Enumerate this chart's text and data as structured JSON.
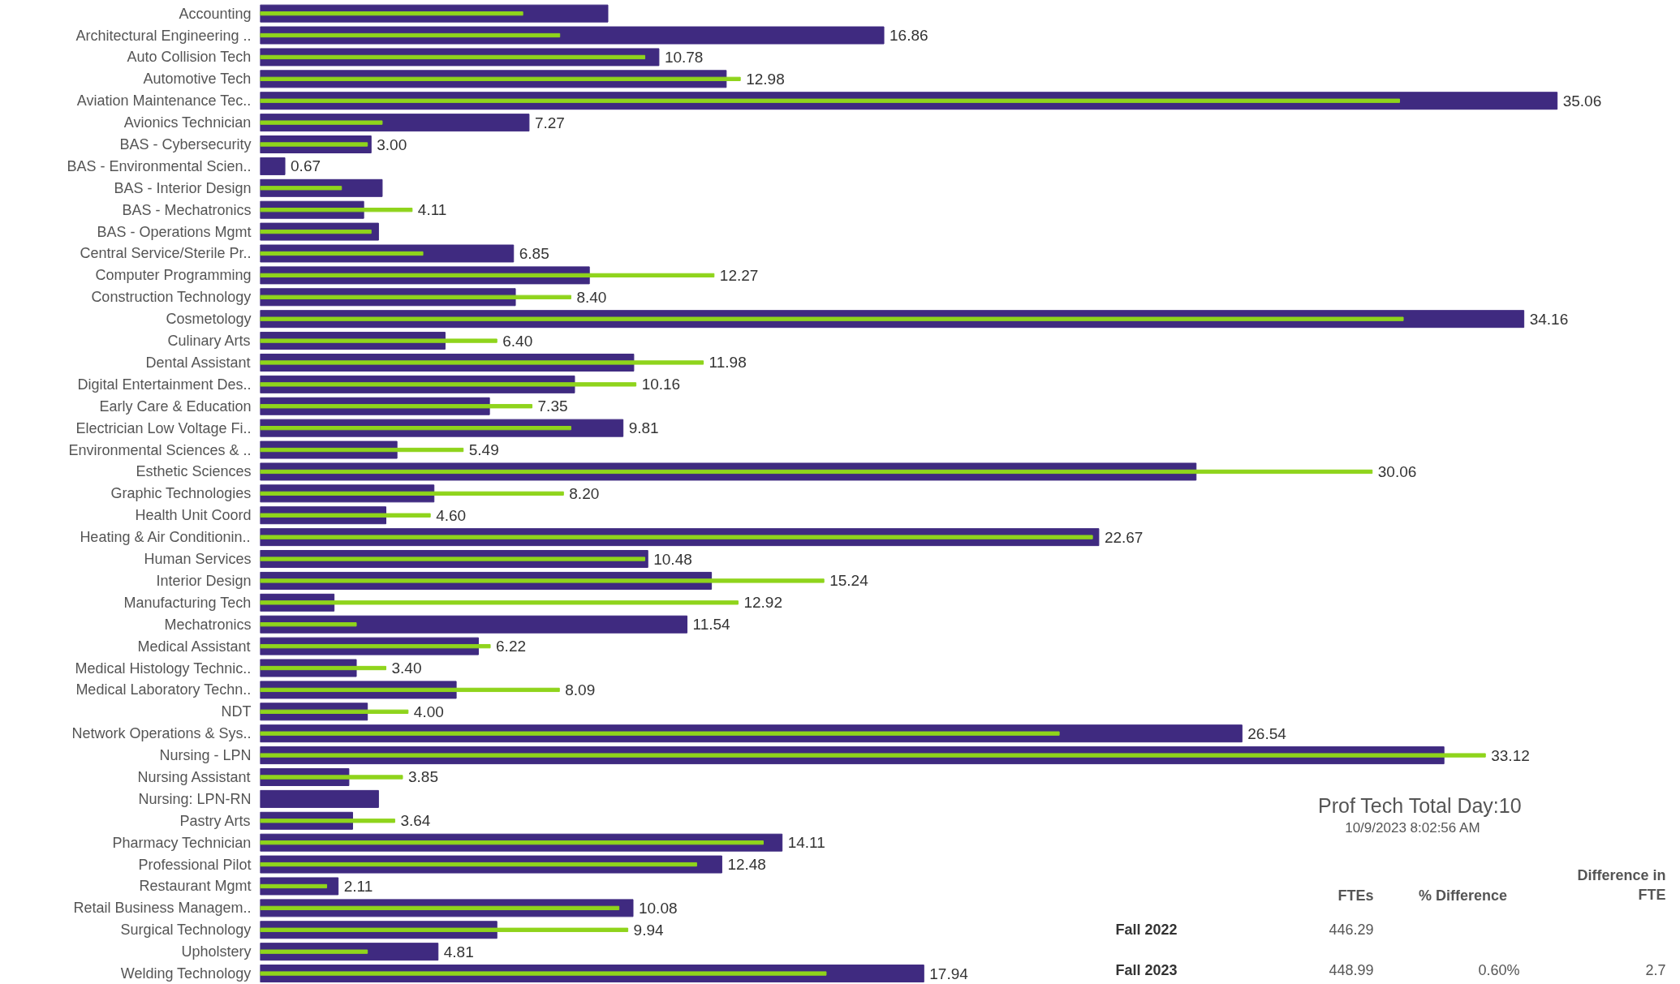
{
  "chart_data": {
    "type": "bar",
    "orientation": "horizontal",
    "categories": [
      "Accounting",
      "Architectural Engineering ..",
      "Auto Collision Tech",
      "Automotive Tech",
      "Aviation Maintenance Tec..",
      "Avionics Technician",
      "BAS - Cybersecurity",
      "BAS - Environmental Scien..",
      "BAS - Interior Design",
      "BAS - Mechatronics",
      "BAS - Operations Mgmt",
      "Central Service/Sterile Pr..",
      "Computer Programming",
      "Construction Technology",
      "Cosmetology",
      "Culinary Arts",
      "Dental Assistant",
      "Digital Entertainment Des..",
      "Early Care & Education",
      "Electrician Low Voltage Fi..",
      "Environmental Sciences & ..",
      "Esthetic Sciences",
      "Graphic Technologies",
      "Health Unit Coord",
      "Heating & Air Conditionin..",
      "Human Services",
      "Interior Design",
      "Manufacturing Tech",
      "Mechatronics",
      "Medical Assistant",
      "Medical Histology Technic..",
      "Medical Laboratory Techn..",
      "NDT",
      "Network Operations & Sys..",
      "Nursing - LPN",
      "Nursing Assistant",
      "Nursing: LPN-RN",
      "Pastry Arts",
      "Pharmacy Technician",
      "Professional Pilot",
      "Restaurant Mgmt",
      "Retail Business Managem..",
      "Surgical Technology",
      "Upholstery",
      "Welding Technology"
    ],
    "tick_labels": "y",
    "grid": false,
    "series": [
      {
        "color": "#3f2a80",
        "values": [
          9.4,
          16.86,
          10.78,
          12.6,
          35.06,
          7.27,
          3.0,
          0.67,
          3.3,
          2.8,
          3.2,
          6.85,
          8.9,
          6.9,
          34.16,
          5.0,
          10.1,
          8.5,
          6.2,
          9.81,
          3.7,
          25.3,
          4.7,
          3.4,
          22.67,
          10.48,
          12.2,
          2.0,
          11.54,
          5.9,
          2.6,
          5.3,
          2.9,
          26.54,
          32.0,
          2.4,
          3.2,
          2.5,
          14.11,
          12.48,
          2.11,
          10.08,
          6.4,
          4.81,
          17.94
        ],
        "value_labels": [
          null,
          "16.86",
          "10.78",
          null,
          "35.06",
          "7.27",
          "3.00",
          "0.67",
          null,
          null,
          null,
          "6.85",
          null,
          null,
          "34.16",
          null,
          null,
          null,
          null,
          "9.81",
          null,
          null,
          null,
          null,
          "22.67",
          "10.48",
          null,
          null,
          "11.54",
          null,
          null,
          null,
          null,
          "26.54",
          null,
          null,
          null,
          null,
          "14.11",
          "12.48",
          "2.11",
          "10.08",
          null,
          "4.81",
          "17.94"
        ]
      },
      {
        "color": "#8fd41c",
        "values": [
          7.1,
          8.1,
          10.4,
          12.98,
          30.8,
          3.3,
          2.9,
          null,
          2.2,
          4.11,
          3.0,
          4.4,
          12.27,
          8.4,
          30.9,
          6.4,
          11.98,
          10.16,
          7.35,
          8.4,
          5.49,
          30.06,
          8.2,
          4.6,
          22.5,
          10.4,
          15.24,
          12.92,
          2.6,
          6.22,
          3.4,
          8.09,
          4.0,
          21.6,
          33.12,
          3.85,
          null,
          3.64,
          13.6,
          11.8,
          1.8,
          9.7,
          9.94,
          2.9,
          15.3
        ],
        "value_labels": [
          null,
          null,
          null,
          "12.98",
          null,
          null,
          null,
          null,
          null,
          "4.11",
          null,
          null,
          "12.27",
          "8.40",
          null,
          "6.40",
          "11.98",
          "10.16",
          "7.35",
          null,
          "5.49",
          "30.06",
          "8.20",
          "4.60",
          null,
          null,
          "15.24",
          "12.92",
          null,
          "6.22",
          "3.40",
          "8.09",
          "4.00",
          null,
          "33.12",
          "3.85",
          null,
          "3.64",
          null,
          null,
          null,
          null,
          "9.94",
          null,
          null
        ]
      }
    ],
    "annotations": [
      "Prof Tech Total Day:10",
      "10/9/2023 8:02:56 AM",
      "FTEs",
      "% Difference",
      "Difference in FTE",
      "Fall 2022",
      "446.29",
      "Fall 2023",
      "448.99",
      "0.60%",
      "2.7"
    ]
  }
}
